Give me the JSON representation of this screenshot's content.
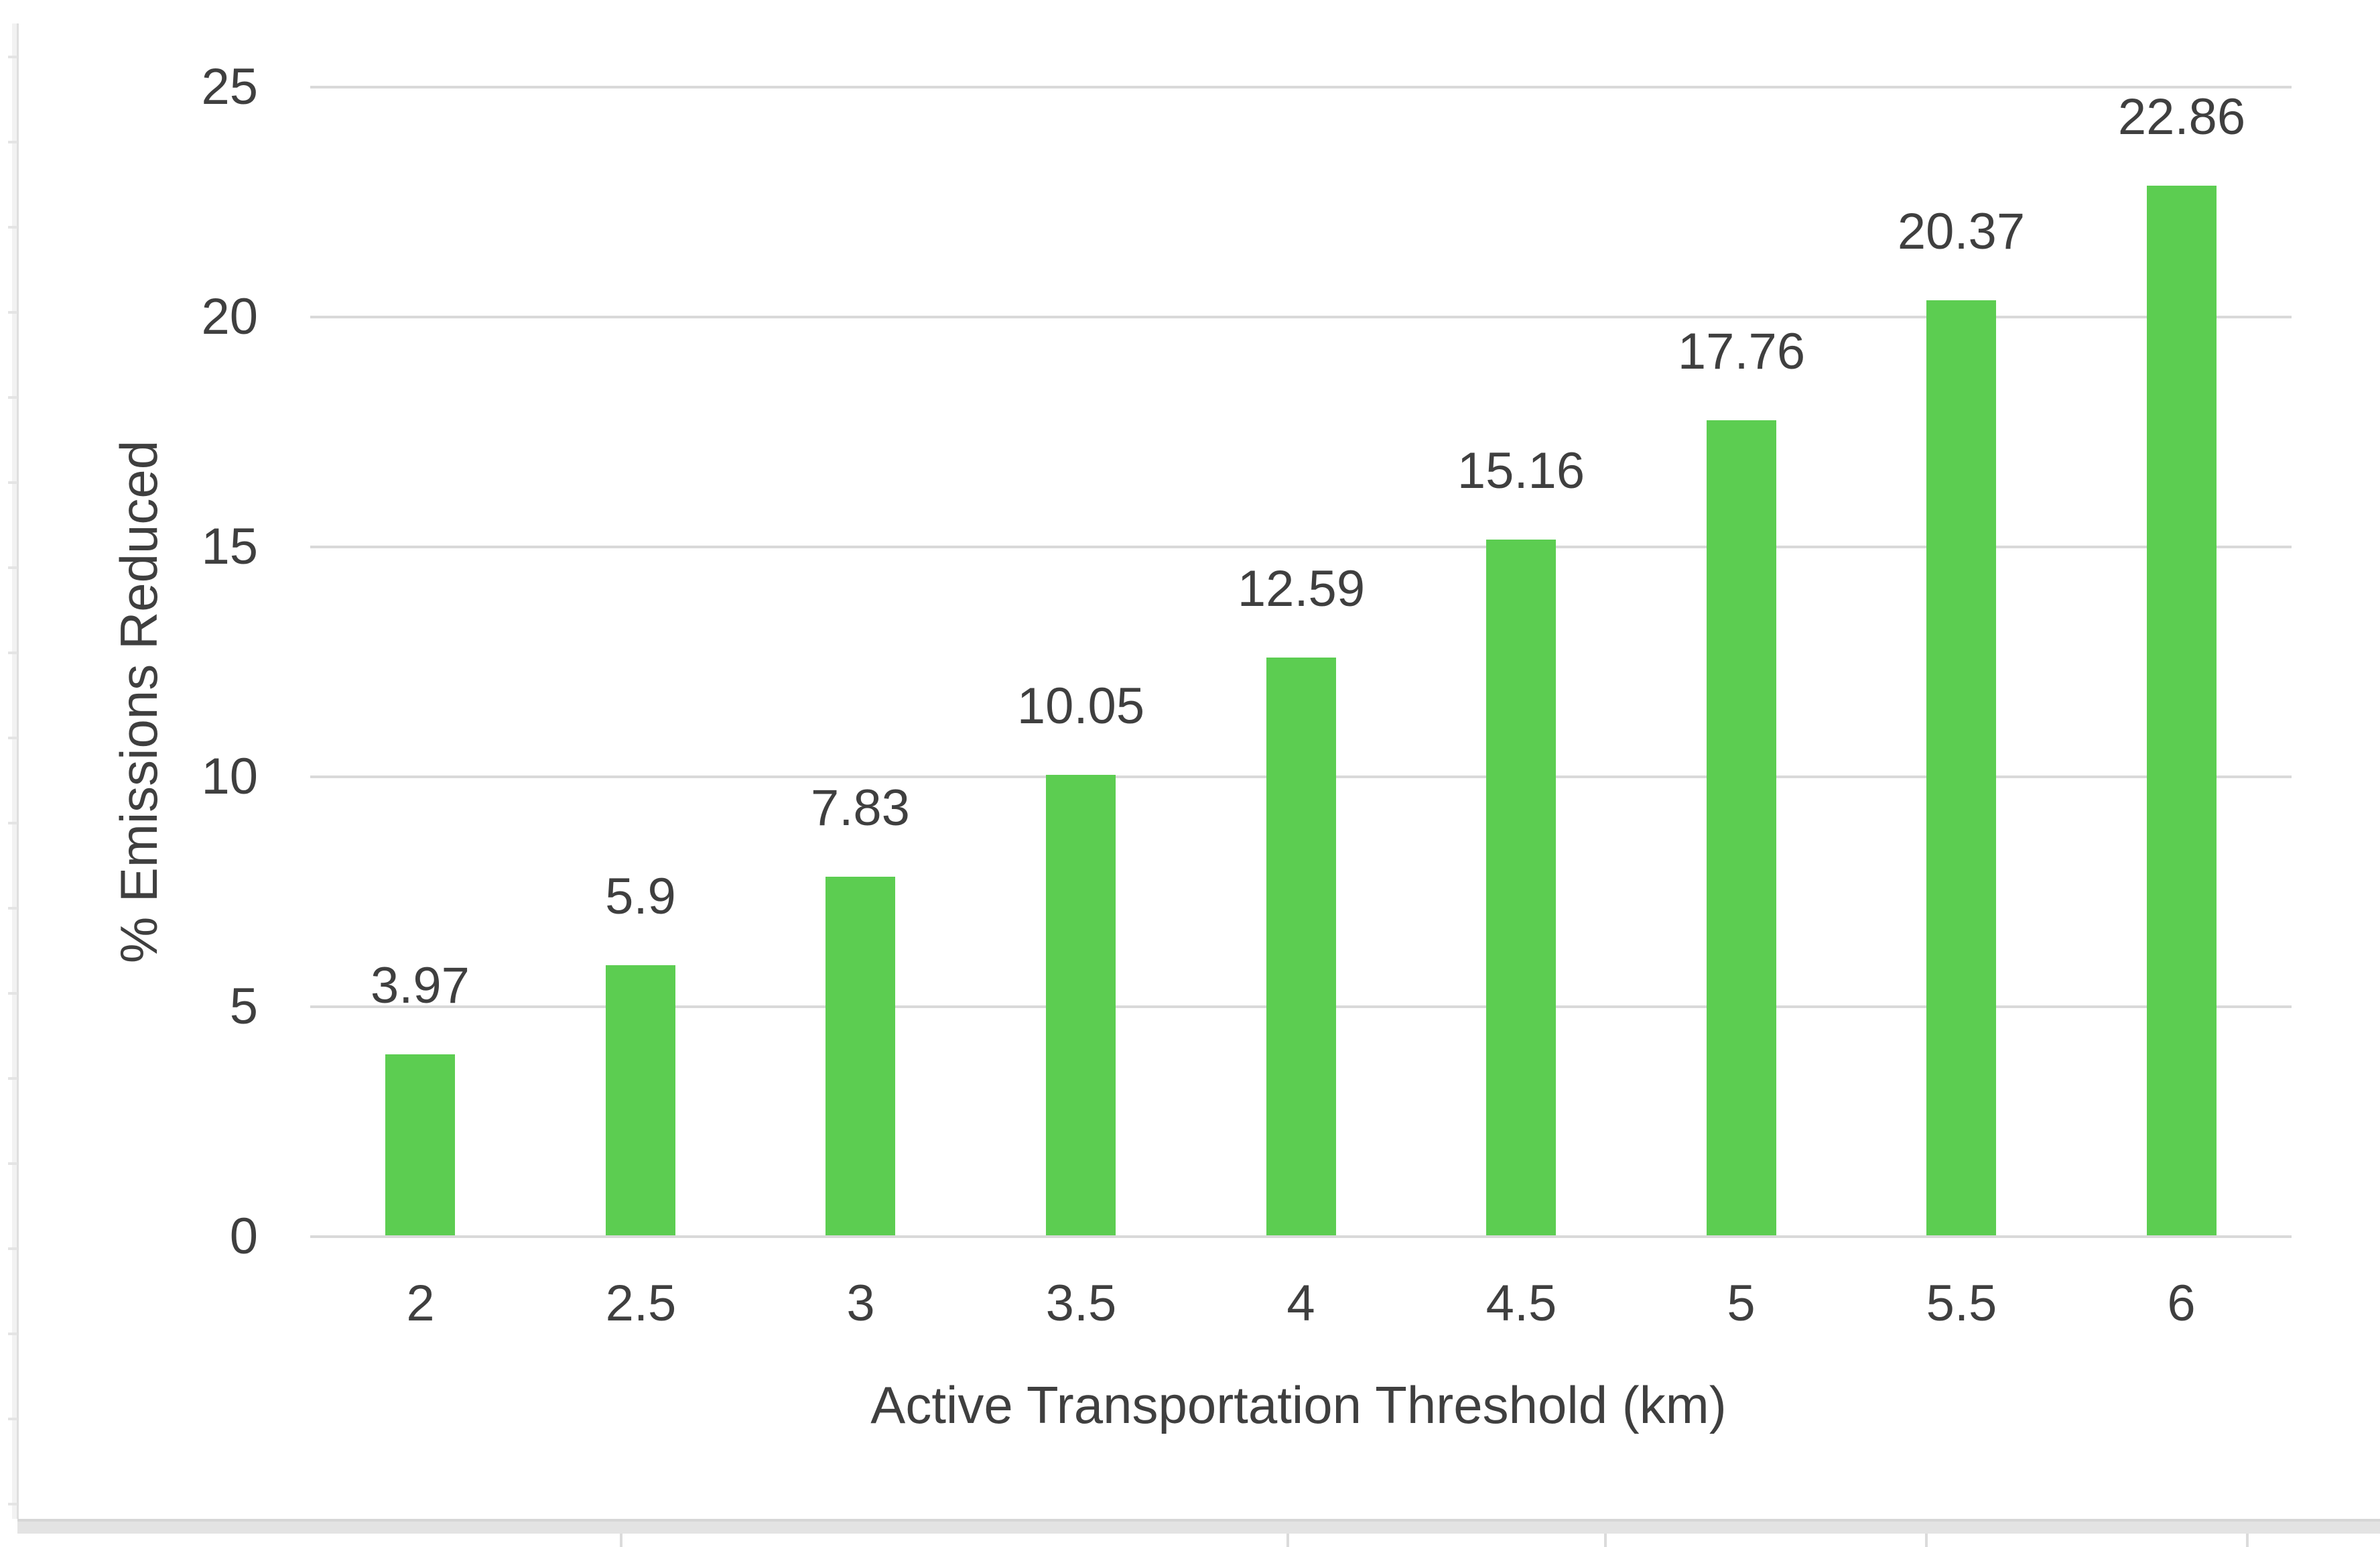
{
  "chart_data": {
    "type": "bar",
    "title": "",
    "categories": [
      "2",
      "2.5",
      "3",
      "3.5",
      "4",
      "4.5",
      "5",
      "5.5",
      "6"
    ],
    "values": [
      3.97,
      5.9,
      7.83,
      10.05,
      12.59,
      15.16,
      17.76,
      20.37,
      22.86
    ],
    "value_labels": [
      "3.97",
      "5.9",
      "7.83",
      "10.05",
      "12.59",
      "15.16",
      "17.76",
      "20.37",
      "22.86"
    ],
    "xlabel": "Active Transportation Threshold (km)",
    "ylabel": "% Emissions Reduced",
    "y_tick_labels": [
      "0",
      "5",
      "10",
      "15",
      "20",
      "25"
    ],
    "y_tick_values": [
      0,
      5,
      10,
      15,
      20,
      25
    ],
    "ylim": [
      0,
      25
    ],
    "grid": true,
    "legend": false,
    "bar_color": "#5CCD51",
    "grid_color": "#D9D9D9",
    "text_color": "#3F3F3F",
    "background_color": "#FFFFFF"
  }
}
